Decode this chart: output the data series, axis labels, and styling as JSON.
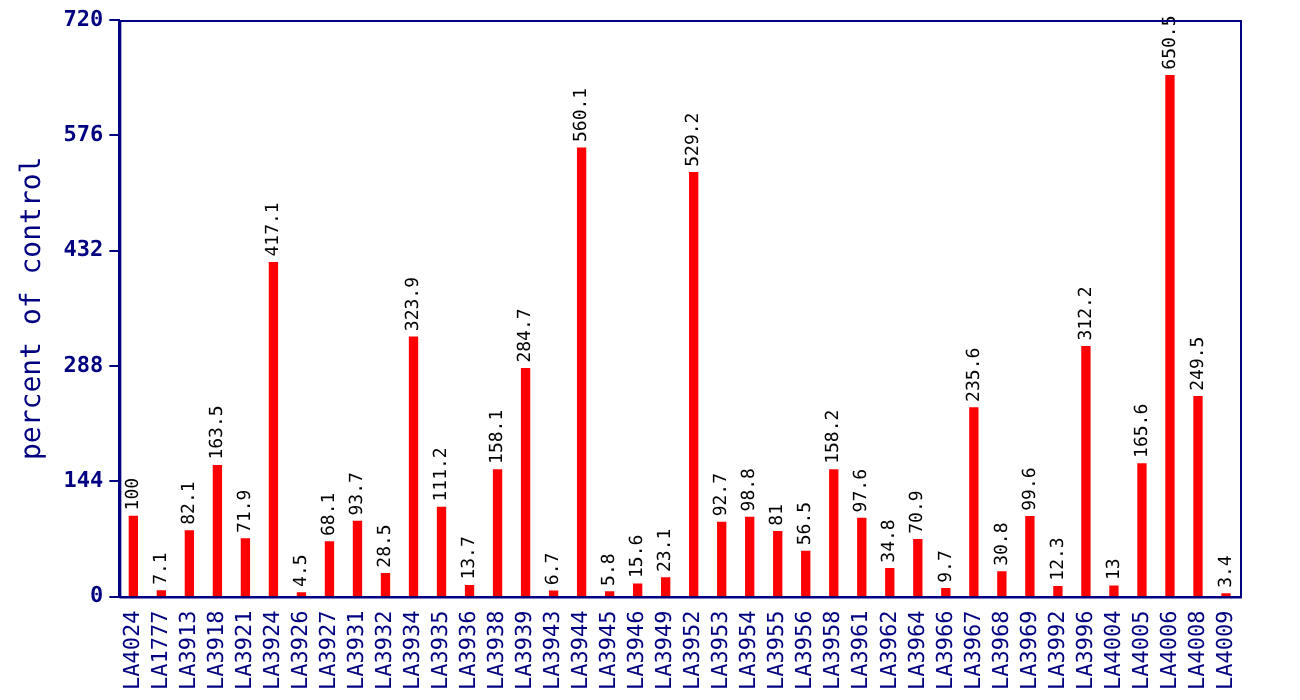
{
  "chart_data": {
    "type": "bar",
    "ylabel": "percent of control",
    "categories": [
      "LA4024",
      "LA1777",
      "LA3913",
      "LA3918",
      "LA3921",
      "LA3924",
      "LA3926",
      "LA3927",
      "LA3931",
      "LA3932",
      "LA3934",
      "LA3935",
      "LA3936",
      "LA3938",
      "LA3939",
      "LA3943",
      "LA3944",
      "LA3945",
      "LA3946",
      "LA3949",
      "LA3952",
      "LA3953",
      "LA3954",
      "LA3955",
      "LA3956",
      "LA3958",
      "LA3961",
      "LA3962",
      "LA3964",
      "LA3966",
      "LA3967",
      "LA3968",
      "LA3969",
      "LA3992",
      "LA3996",
      "LA4004",
      "LA4005",
      "LA4006",
      "LA4008",
      "LA4009"
    ],
    "values": [
      100,
      7.1,
      82.1,
      163.5,
      71.9,
      417.1,
      4.5,
      68.1,
      93.7,
      28.5,
      323.9,
      111.2,
      13.7,
      158.1,
      284.7,
      6.7,
      560.1,
      5.8,
      15.6,
      23.1,
      529.2,
      92.7,
      98.8,
      81,
      56.5,
      158.2,
      97.6,
      34.8,
      70.9,
      9.7,
      235.6,
      30.8,
      99.6,
      12.3,
      312.2,
      13,
      165.6,
      650.5,
      249.5,
      3.4
    ],
    "color": "#ff0000",
    "ylim": [
      0,
      720
    ],
    "yticks": [
      0,
      144,
      288,
      432,
      576,
      720
    ],
    "grid": false,
    "legend": false,
    "data_labels": true
  }
}
